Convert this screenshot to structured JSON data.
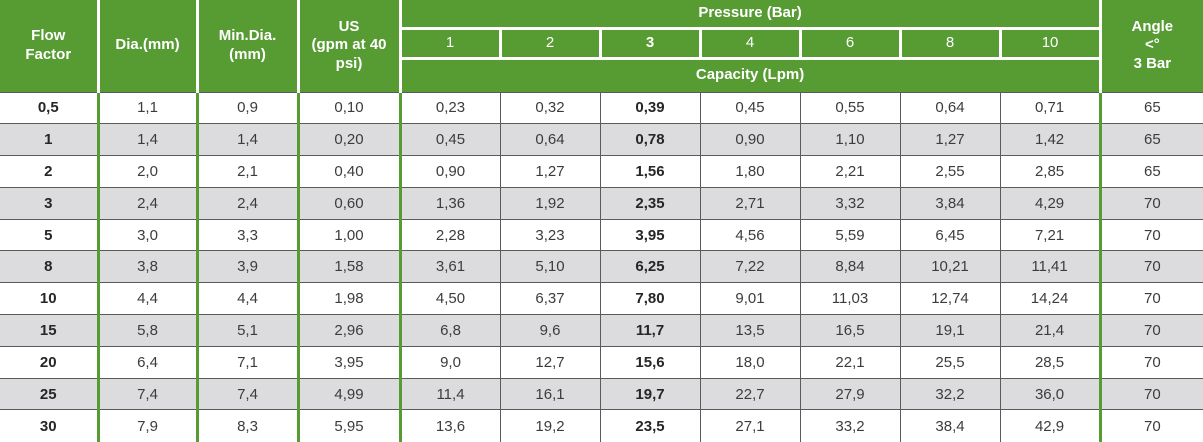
{
  "table": {
    "header": {
      "flow_factor": "Flow\nFactor",
      "dia": "Dia.(mm)",
      "min_dia": "Min.Dia.\n(mm)",
      "us": "US\n(gpm at 40\npsi)",
      "pressure": "Pressure (Bar)",
      "pressure_values": [
        "1",
        "2",
        "3",
        "4",
        "6",
        "8",
        "10"
      ],
      "bold_pressure_value": "3",
      "capacity": "Capacity (Lpm)",
      "angle": "Angle\n<°\n3 Bar"
    },
    "rows": [
      {
        "flow_factor": "0,5",
        "dia": "1,1",
        "min_dia": "0,9",
        "us": "0,10",
        "capacity": [
          "0,23",
          "0,32",
          "0,39",
          "0,45",
          "0,55",
          "0,64",
          "0,71"
        ],
        "angle": "65"
      },
      {
        "flow_factor": "1",
        "dia": "1,4",
        "min_dia": "1,4",
        "us": "0,20",
        "capacity": [
          "0,45",
          "0,64",
          "0,78",
          "0,90",
          "1,10",
          "1,27",
          "1,42"
        ],
        "angle": "65"
      },
      {
        "flow_factor": "2",
        "dia": "2,0",
        "min_dia": "2,1",
        "us": "0,40",
        "capacity": [
          "0,90",
          "1,27",
          "1,56",
          "1,80",
          "2,21",
          "2,55",
          "2,85"
        ],
        "angle": "65"
      },
      {
        "flow_factor": "3",
        "dia": "2,4",
        "min_dia": "2,4",
        "us": "0,60",
        "capacity": [
          "1,36",
          "1,92",
          "2,35",
          "2,71",
          "3,32",
          "3,84",
          "4,29"
        ],
        "angle": "70"
      },
      {
        "flow_factor": "5",
        "dia": "3,0",
        "min_dia": "3,3",
        "us": "1,00",
        "capacity": [
          "2,28",
          "3,23",
          "3,95",
          "4,56",
          "5,59",
          "6,45",
          "7,21"
        ],
        "angle": "70"
      },
      {
        "flow_factor": "8",
        "dia": "3,8",
        "min_dia": "3,9",
        "us": "1,58",
        "capacity": [
          "3,61",
          "5,10",
          "6,25",
          "7,22",
          "8,84",
          "10,21",
          "11,41"
        ],
        "angle": "70"
      },
      {
        "flow_factor": "10",
        "dia": "4,4",
        "min_dia": "4,4",
        "us": "1,98",
        "capacity": [
          "4,50",
          "6,37",
          "7,80",
          "9,01",
          "11,03",
          "12,74",
          "14,24"
        ],
        "angle": "70"
      },
      {
        "flow_factor": "15",
        "dia": "5,8",
        "min_dia": "5,1",
        "us": "2,96",
        "capacity": [
          "6,8",
          "9,6",
          "11,7",
          "13,5",
          "16,5",
          "19,1",
          "21,4"
        ],
        "angle": "70"
      },
      {
        "flow_factor": "20",
        "dia": "6,4",
        "min_dia": "7,1",
        "us": "3,95",
        "capacity": [
          "9,0",
          "12,7",
          "15,6",
          "18,0",
          "22,1",
          "25,5",
          "28,5"
        ],
        "angle": "70"
      },
      {
        "flow_factor": "25",
        "dia": "7,4",
        "min_dia": "7,4",
        "us": "4,99",
        "capacity": [
          "11,4",
          "16,1",
          "19,7",
          "22,7",
          "27,9",
          "32,2",
          "36,0"
        ],
        "angle": "70"
      },
      {
        "flow_factor": "30",
        "dia": "7,9",
        "min_dia": "8,3",
        "us": "5,95",
        "capacity": [
          "13,6",
          "19,2",
          "23,5",
          "27,1",
          "33,2",
          "38,4",
          "42,9"
        ],
        "angle": "70"
      }
    ]
  },
  "colors": {
    "header_green": "#579b33",
    "row_alt_gray": "#dcdcde",
    "grid_line": "#5a5a5a",
    "header_text": "#ffffff",
    "body_text": "#3c3c3c"
  }
}
